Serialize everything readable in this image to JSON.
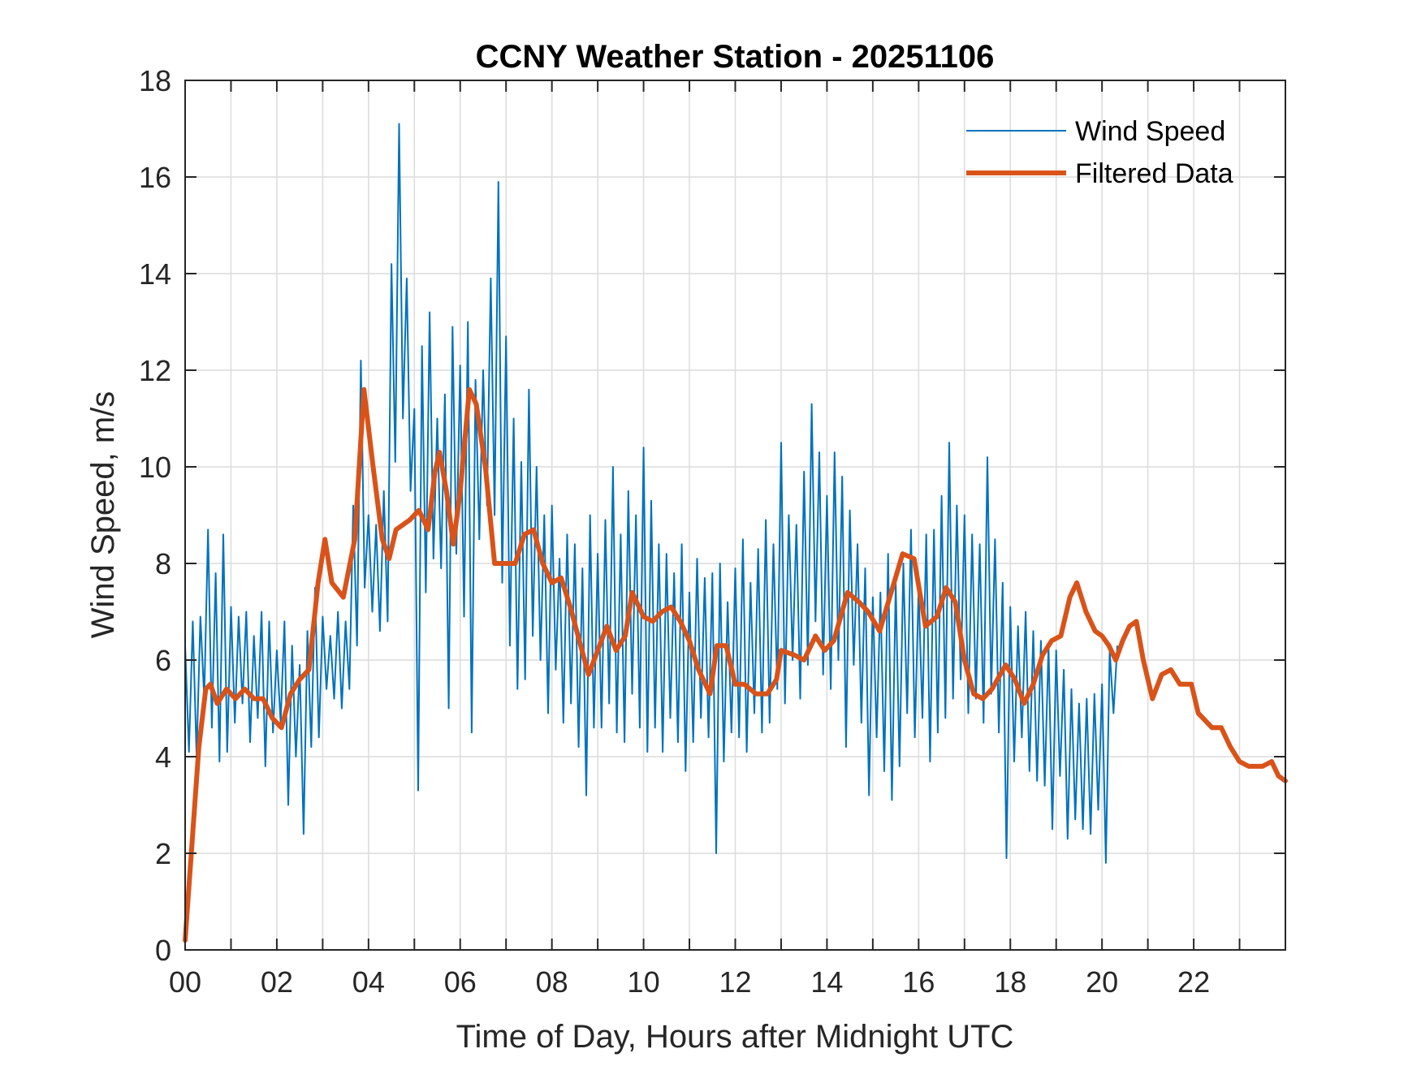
{
  "chart_data": {
    "type": "line",
    "title": "CCNY Weather Station - 20251106",
    "xlabel": "Time of Day, Hours after Midnight UTC",
    "ylabel": "Wind Speed, m/s",
    "xlim": [
      0,
      24
    ],
    "ylim": [
      0,
      18
    ],
    "grid": true,
    "legend_position": "top-right",
    "x_ticks": [
      0,
      2,
      4,
      6,
      8,
      10,
      12,
      14,
      16,
      18,
      20,
      22
    ],
    "x_tick_labels": [
      "00",
      "02",
      "04",
      "06",
      "08",
      "10",
      "12",
      "14",
      "16",
      "18",
      "20",
      "22"
    ],
    "x_minor_ticks_every_hours": 1,
    "y_ticks": [
      0,
      2,
      4,
      6,
      8,
      10,
      12,
      14,
      16,
      18
    ],
    "y_tick_labels": [
      "0",
      "2",
      "4",
      "6",
      "8",
      "10",
      "12",
      "14",
      "16",
      "18"
    ],
    "series": [
      {
        "name": "Wind Speed",
        "color": "#0072BD",
        "x_start_hours": 0,
        "x_step_hours": 0.0833333,
        "values": [
          6.3,
          4.1,
          6.8,
          4.0,
          6.9,
          5.2,
          8.7,
          4.6,
          7.8,
          3.9,
          8.6,
          4.1,
          7.1,
          4.7,
          6.9,
          5.1,
          7.0,
          4.3,
          6.5,
          4.8,
          7.0,
          3.8,
          6.8,
          4.5,
          6.2,
          4.7,
          6.8,
          3.0,
          6.3,
          4.0,
          5.9,
          2.4,
          6.6,
          4.2,
          7.5,
          4.4,
          6.9,
          5.4,
          6.5,
          5.2,
          7.0,
          5.0,
          6.8,
          5.4,
          9.2,
          6.3,
          12.2,
          7.5,
          9.0,
          7.0,
          8.8,
          6.6,
          9.5,
          6.8,
          14.2,
          10.1,
          17.1,
          11.0,
          13.9,
          9.5,
          11.2,
          3.3,
          12.5,
          7.4,
          13.2,
          8.1,
          11.0,
          7.9,
          11.5,
          5.0,
          12.9,
          8.2,
          12.1,
          6.9,
          13.0,
          4.5,
          11.8,
          8.5,
          12.0,
          9.2,
          13.9,
          9.0,
          15.9,
          7.6,
          12.7,
          6.3,
          11.0,
          5.4,
          10.1,
          5.6,
          11.6,
          6.5,
          10.0,
          6.0,
          9.0,
          4.9,
          9.2,
          5.8,
          8.1,
          4.7,
          8.6,
          5.1,
          8.4,
          4.2,
          7.9,
          3.2,
          9.0,
          4.6,
          8.2,
          4.6,
          8.9,
          5.1,
          10.0,
          4.5,
          8.6,
          4.3,
          9.5,
          5.3,
          9.0,
          4.6,
          10.4,
          4.1,
          9.3,
          4.6,
          8.4,
          4.1,
          8.2,
          4.8,
          7.8,
          4.3,
          8.4,
          3.7,
          7.4,
          4.3,
          8.1,
          4.8,
          7.7,
          4.4,
          7.8,
          2.0,
          8.0,
          3.9,
          7.2,
          4.5,
          7.9,
          4.4,
          8.5,
          4.1,
          7.6,
          4.9,
          8.3,
          4.5,
          8.9,
          4.7,
          8.4,
          5.4,
          10.5,
          5.1,
          9.0,
          6.0,
          8.8,
          5.2,
          9.9,
          5.9,
          11.3,
          6.8,
          10.3,
          5.7,
          9.4,
          5.4,
          10.3,
          6.0,
          9.8,
          4.2,
          9.1,
          5.9,
          8.4,
          4.7,
          7.9,
          3.2,
          7.3,
          4.4,
          7.4,
          3.7,
          8.2,
          3.1,
          7.6,
          3.8,
          8.0,
          4.9,
          8.7,
          4.4,
          7.5,
          4.8,
          8.6,
          3.9,
          8.7,
          4.5,
          9.4,
          4.8,
          10.5,
          5.2,
          9.2,
          5.6,
          9.0,
          4.9,
          8.6,
          5.2,
          8.4,
          4.7,
          10.2,
          5.3,
          8.5,
          4.5,
          7.6,
          1.9,
          7.1,
          3.9,
          6.7,
          4.4,
          7.0,
          3.7,
          6.6,
          3.5,
          6.4,
          3.4,
          6.3,
          2.5,
          6.2,
          3.6,
          5.8,
          2.3,
          5.4,
          2.7,
          5.1,
          2.5,
          5.2,
          2.4,
          5.3,
          2.9,
          5.5,
          1.8,
          6.2,
          4.9,
          6.3
        ]
      },
      {
        "name": "Filtered Data",
        "color": "#D95319",
        "points": [
          [
            0.0,
            0.2
          ],
          [
            0.3,
            4.2
          ],
          [
            0.45,
            5.4
          ],
          [
            0.55,
            5.5
          ],
          [
            0.7,
            5.1
          ],
          [
            0.9,
            5.4
          ],
          [
            1.1,
            5.2
          ],
          [
            1.3,
            5.4
          ],
          [
            1.5,
            5.2
          ],
          [
            1.7,
            5.2
          ],
          [
            1.9,
            4.8
          ],
          [
            2.1,
            4.6
          ],
          [
            2.3,
            5.3
          ],
          [
            2.5,
            5.6
          ],
          [
            2.7,
            5.8
          ],
          [
            2.9,
            7.6
          ],
          [
            3.05,
            8.5
          ],
          [
            3.2,
            7.6
          ],
          [
            3.45,
            7.3
          ],
          [
            3.7,
            8.5
          ],
          [
            3.9,
            11.6
          ],
          [
            4.1,
            10.0
          ],
          [
            4.3,
            8.5
          ],
          [
            4.45,
            8.1
          ],
          [
            4.6,
            8.7
          ],
          [
            4.9,
            8.9
          ],
          [
            5.1,
            9.1
          ],
          [
            5.3,
            8.7
          ],
          [
            5.45,
            9.9
          ],
          [
            5.55,
            10.3
          ],
          [
            5.7,
            9.5
          ],
          [
            5.85,
            8.4
          ],
          [
            6.0,
            9.5
          ],
          [
            6.2,
            11.6
          ],
          [
            6.35,
            11.3
          ],
          [
            6.55,
            10.0
          ],
          [
            6.75,
            8.0
          ],
          [
            7.0,
            8.0
          ],
          [
            7.2,
            8.0
          ],
          [
            7.4,
            8.6
          ],
          [
            7.6,
            8.7
          ],
          [
            7.8,
            8.0
          ],
          [
            8.0,
            7.6
          ],
          [
            8.2,
            7.7
          ],
          [
            8.4,
            7.1
          ],
          [
            8.6,
            6.4
          ],
          [
            8.8,
            5.7
          ],
          [
            9.0,
            6.2
          ],
          [
            9.2,
            6.7
          ],
          [
            9.4,
            6.2
          ],
          [
            9.6,
            6.5
          ],
          [
            9.75,
            7.4
          ],
          [
            10.0,
            6.9
          ],
          [
            10.2,
            6.8
          ],
          [
            10.4,
            7.0
          ],
          [
            10.6,
            7.1
          ],
          [
            10.8,
            6.8
          ],
          [
            11.0,
            6.4
          ],
          [
            11.2,
            5.8
          ],
          [
            11.45,
            5.3
          ],
          [
            11.6,
            6.3
          ],
          [
            11.8,
            6.3
          ],
          [
            12.0,
            5.5
          ],
          [
            12.2,
            5.5
          ],
          [
            12.45,
            5.3
          ],
          [
            12.7,
            5.3
          ],
          [
            12.9,
            5.6
          ],
          [
            13.0,
            6.2
          ],
          [
            13.3,
            6.1
          ],
          [
            13.5,
            6.0
          ],
          [
            13.75,
            6.5
          ],
          [
            13.95,
            6.2
          ],
          [
            14.15,
            6.4
          ],
          [
            14.45,
            7.4
          ],
          [
            14.7,
            7.2
          ],
          [
            14.9,
            7.0
          ],
          [
            15.15,
            6.6
          ],
          [
            15.4,
            7.4
          ],
          [
            15.65,
            8.2
          ],
          [
            15.9,
            8.1
          ],
          [
            16.15,
            6.7
          ],
          [
            16.4,
            6.9
          ],
          [
            16.6,
            7.5
          ],
          [
            16.8,
            7.2
          ],
          [
            17.0,
            6.0
          ],
          [
            17.2,
            5.3
          ],
          [
            17.4,
            5.2
          ],
          [
            17.6,
            5.4
          ],
          [
            17.9,
            5.9
          ],
          [
            18.1,
            5.6
          ],
          [
            18.3,
            5.1
          ],
          [
            18.5,
            5.5
          ],
          [
            18.7,
            6.1
          ],
          [
            18.9,
            6.4
          ],
          [
            19.1,
            6.5
          ],
          [
            19.3,
            7.3
          ],
          [
            19.45,
            7.6
          ],
          [
            19.65,
            7.0
          ],
          [
            19.85,
            6.6
          ],
          [
            20.0,
            6.5
          ],
          [
            20.15,
            6.3
          ],
          [
            20.3,
            6.0
          ],
          [
            20.45,
            6.4
          ],
          [
            20.6,
            6.7
          ],
          [
            20.75,
            6.8
          ],
          [
            20.9,
            6.0
          ],
          [
            21.1,
            5.2
          ],
          [
            21.3,
            5.7
          ],
          [
            21.5,
            5.8
          ],
          [
            21.7,
            5.5
          ],
          [
            21.95,
            5.5
          ],
          [
            22.1,
            4.9
          ],
          [
            22.4,
            4.6
          ],
          [
            22.6,
            4.6
          ],
          [
            22.8,
            4.2
          ],
          [
            23.0,
            3.9
          ],
          [
            23.2,
            3.8
          ],
          [
            23.5,
            3.8
          ],
          [
            23.7,
            3.9
          ],
          [
            23.85,
            3.6
          ],
          [
            24.0,
            3.5
          ]
        ]
      }
    ]
  }
}
